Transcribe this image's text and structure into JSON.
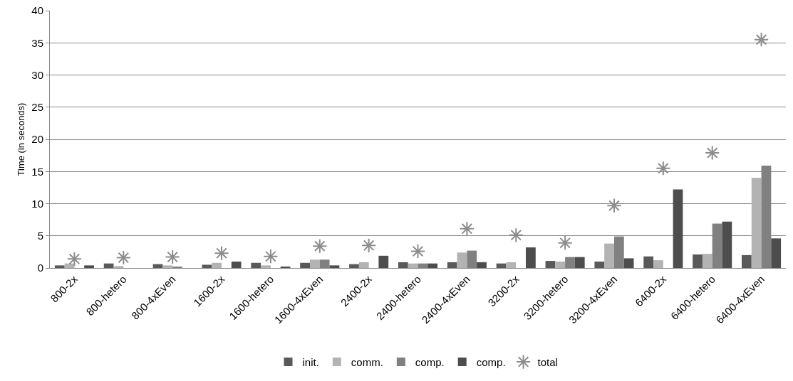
{
  "chart_data": {
    "type": "bar",
    "ylabel": "Time (in seconds)",
    "categories": [
      "800-2x",
      "800-hetero",
      "800-4xEven",
      "1600-2x",
      "1600-hetero",
      "1600-4xEven",
      "2400-2x",
      "2400-hetero",
      "2400-4xEven",
      "3200-2x",
      "3200-hetero",
      "3200-4xEven",
      "6400-2x",
      "6400-hetero",
      "6400-4xEven"
    ],
    "series": [
      {
        "name": "init.",
        "color": "#595959",
        "values": [
          0.4,
          0.7,
          0.6,
          0.5,
          0.8,
          0.8,
          0.6,
          0.9,
          0.9,
          0.7,
          1.1,
          1.0,
          1.8,
          2.1,
          2.0
        ]
      },
      {
        "name": "comm.",
        "color": "#b3b3b3",
        "values": [
          0.7,
          0.3,
          0.4,
          0.8,
          0.4,
          1.3,
          0.9,
          0.7,
          2.4,
          0.9,
          1.0,
          3.8,
          1.2,
          2.2,
          14.0
        ]
      },
      {
        "name": "comp.",
        "color": "#808080",
        "values": [
          null,
          null,
          0.2,
          0,
          null,
          1.3,
          0,
          0.7,
          2.7,
          0,
          1.7,
          4.9,
          0,
          6.9,
          15.9
        ]
      },
      {
        "name": "comp.",
        "color": "#4d4d4d",
        "values": [
          0.4,
          null,
          null,
          1.0,
          0.2,
          0.4,
          1.9,
          0.7,
          0.9,
          3.2,
          1.7,
          1.5,
          12.2,
          7.2,
          4.6
        ]
      },
      {
        "name": "total",
        "color": "#8c8c8c",
        "type": "scatter",
        "marker": "cross",
        "values": [
          1.4,
          1.6,
          1.7,
          2.3,
          1.8,
          3.4,
          3.5,
          2.6,
          6.1,
          5.1,
          3.9,
          9.7,
          15.5,
          17.9,
          35.5
        ]
      }
    ],
    "ylim": [
      0,
      40
    ],
    "yticks": [
      0,
      5,
      10,
      15,
      20,
      25,
      30,
      35,
      40
    ],
    "grid": "y",
    "legend": "bottom"
  }
}
